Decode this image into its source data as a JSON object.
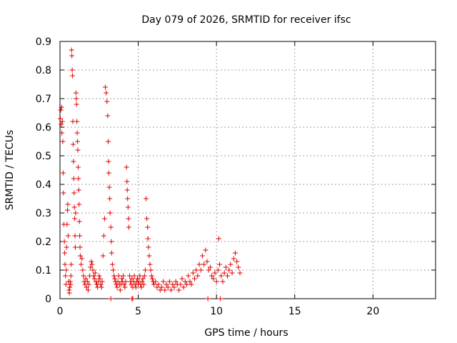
{
  "chart_data": {
    "type": "scatter",
    "title": "Day 079 of 2026, SRMTID for receiver ifsc",
    "xlabel": "GPS time / hours",
    "ylabel": "SRMTID / TECUs",
    "xlim": [
      0,
      24
    ],
    "ylim": [
      0,
      0.9
    ],
    "xticks": [
      0,
      5,
      10,
      15,
      20
    ],
    "yticks": [
      0,
      0.1,
      0.2,
      0.3,
      0.4,
      0.5,
      0.6,
      0.7,
      0.8,
      0.9
    ],
    "grid": true,
    "marker": "+",
    "color": "#e00000",
    "series": [
      {
        "name": "SRMTID",
        "points": [
          [
            0.02,
            0.63
          ],
          [
            0.05,
            0.66
          ],
          [
            0.08,
            0.61
          ],
          [
            0.1,
            0.67
          ],
          [
            0.12,
            0.58
          ],
          [
            0.15,
            0.62
          ],
          [
            0.18,
            0.55
          ],
          [
            0.2,
            0.44
          ],
          [
            0.22,
            0.37
          ],
          [
            0.25,
            0.26
          ],
          [
            0.28,
            0.2
          ],
          [
            0.3,
            0.16
          ],
          [
            0.32,
            0.12
          ],
          [
            0.35,
            0.08
          ],
          [
            0.38,
            0.05
          ],
          [
            0.4,
            0.1
          ],
          [
            0.42,
            0.18
          ],
          [
            0.45,
            0.26
          ],
          [
            0.48,
            0.31
          ],
          [
            0.5,
            0.33
          ],
          [
            0.52,
            0.22
          ],
          [
            0.55,
            0.06
          ],
          [
            0.58,
            0.03
          ],
          [
            0.6,
            0.02
          ],
          [
            0.62,
            0.04
          ],
          [
            0.65,
            0.06
          ],
          [
            0.68,
            0.05
          ],
          [
            0.7,
            0.08
          ],
          [
            0.72,
            0.12
          ],
          [
            0.74,
            0.87
          ],
          [
            0.76,
            0.85
          ],
          [
            0.78,
            0.8
          ],
          [
            0.8,
            0.78
          ],
          [
            0.82,
            0.62
          ],
          [
            0.84,
            0.54
          ],
          [
            0.86,
            0.48
          ],
          [
            0.88,
            0.42
          ],
          [
            0.9,
            0.37
          ],
          [
            0.92,
            0.32
          ],
          [
            0.94,
            0.28
          ],
          [
            0.96,
            0.22
          ],
          [
            0.98,
            0.18
          ],
          [
            1.0,
            0.3
          ],
          [
            1.02,
            0.72
          ],
          [
            1.04,
            0.7
          ],
          [
            1.06,
            0.68
          ],
          [
            1.08,
            0.62
          ],
          [
            1.1,
            0.58
          ],
          [
            1.12,
            0.55
          ],
          [
            1.14,
            0.52
          ],
          [
            1.16,
            0.46
          ],
          [
            1.18,
            0.42
          ],
          [
            1.2,
            0.38
          ],
          [
            1.22,
            0.33
          ],
          [
            1.24,
            0.27
          ],
          [
            1.26,
            0.22
          ],
          [
            1.28,
            0.18
          ],
          [
            1.3,
            0.15
          ],
          [
            1.35,
            0.12
          ],
          [
            1.4,
            0.14
          ],
          [
            1.45,
            0.1
          ],
          [
            1.5,
            0.08
          ],
          [
            1.55,
            0.06
          ],
          [
            1.6,
            0.05
          ],
          [
            1.65,
            0.07
          ],
          [
            1.7,
            0.04
          ],
          [
            1.75,
            0.06
          ],
          [
            1.8,
            0.03
          ],
          [
            1.85,
            0.05
          ],
          [
            1.9,
            0.08
          ],
          [
            1.95,
            0.11
          ],
          [
            2.0,
            0.13
          ],
          [
            2.05,
            0.12
          ],
          [
            2.1,
            0.1
          ],
          [
            2.15,
            0.08
          ],
          [
            2.2,
            0.07
          ],
          [
            2.25,
            0.09
          ],
          [
            2.3,
            0.06
          ],
          [
            2.35,
            0.05
          ],
          [
            2.4,
            0.04
          ],
          [
            2.45,
            0.06
          ],
          [
            2.5,
            0.08
          ],
          [
            2.55,
            0.07
          ],
          [
            2.6,
            0.05
          ],
          [
            2.65,
            0.04
          ],
          [
            2.7,
            0.06
          ],
          [
            2.75,
            0.15
          ],
          [
            2.8,
            0.22
          ],
          [
            2.85,
            0.28
          ],
          [
            2.9,
            0.74
          ],
          [
            2.95,
            0.72
          ],
          [
            3.0,
            0.69
          ],
          [
            3.05,
            0.64
          ],
          [
            3.08,
            0.55
          ],
          [
            3.1,
            0.48
          ],
          [
            3.12,
            0.44
          ],
          [
            3.15,
            0.39
          ],
          [
            3.18,
            0.35
          ],
          [
            3.2,
            0.3
          ],
          [
            3.25,
            0.25
          ],
          [
            3.28,
            0.2
          ],
          [
            3.3,
            0.16
          ],
          [
            3.35,
            0.12
          ],
          [
            3.4,
            0.1
          ],
          [
            3.45,
            0.08
          ],
          [
            3.5,
            0.07
          ],
          [
            3.55,
            0.06
          ],
          [
            3.6,
            0.05
          ],
          [
            3.65,
            0.04
          ],
          [
            3.7,
            0.06
          ],
          [
            3.75,
            0.08
          ],
          [
            3.8,
            0.05
          ],
          [
            3.85,
            0.03
          ],
          [
            3.9,
            0.05
          ],
          [
            3.95,
            0.07
          ],
          [
            4.0,
            0.06
          ],
          [
            4.05,
            0.08
          ],
          [
            4.1,
            0.05
          ],
          [
            4.15,
            0.04
          ],
          [
            4.2,
            0.06
          ],
          [
            4.25,
            0.46
          ],
          [
            4.28,
            0.41
          ],
          [
            4.3,
            0.38
          ],
          [
            4.32,
            0.35
          ],
          [
            4.35,
            0.32
          ],
          [
            4.38,
            0.28
          ],
          [
            4.4,
            0.25
          ],
          [
            4.45,
            0.08
          ],
          [
            4.5,
            0.06
          ],
          [
            4.55,
            0.05
          ],
          [
            4.6,
            0.07
          ],
          [
            4.65,
            0.04
          ],
          [
            4.7,
            0.06
          ],
          [
            4.75,
            0.08
          ],
          [
            4.8,
            0.05
          ],
          [
            4.85,
            0.04
          ],
          [
            4.9,
            0.06
          ],
          [
            4.95,
            0.07
          ],
          [
            5.0,
            0.05
          ],
          [
            5.05,
            0.06
          ],
          [
            5.1,
            0.08
          ],
          [
            5.15,
            0.05
          ],
          [
            5.2,
            0.04
          ],
          [
            5.25,
            0.06
          ],
          [
            5.3,
            0.07
          ],
          [
            5.35,
            0.05
          ],
          [
            5.4,
            0.08
          ],
          [
            5.45,
            0.1
          ],
          [
            5.5,
            0.35
          ],
          [
            5.55,
            0.28
          ],
          [
            5.6,
            0.25
          ],
          [
            5.62,
            0.21
          ],
          [
            5.65,
            0.18
          ],
          [
            5.7,
            0.15
          ],
          [
            5.75,
            0.12
          ],
          [
            5.8,
            0.1
          ],
          [
            5.85,
            0.08
          ],
          [
            5.9,
            0.07
          ],
          [
            5.95,
            0.06
          ],
          [
            6.0,
            0.05
          ],
          [
            6.1,
            0.06
          ],
          [
            6.2,
            0.04
          ],
          [
            6.3,
            0.05
          ],
          [
            6.4,
            0.03
          ],
          [
            6.5,
            0.04
          ],
          [
            6.6,
            0.06
          ],
          [
            6.7,
            0.03
          ],
          [
            6.8,
            0.05
          ],
          [
            6.9,
            0.04
          ],
          [
            7.0,
            0.06
          ],
          [
            7.1,
            0.03
          ],
          [
            7.2,
            0.05
          ],
          [
            7.3,
            0.04
          ],
          [
            7.4,
            0.06
          ],
          [
            7.5,
            0.05
          ],
          [
            7.6,
            0.03
          ],
          [
            7.7,
            0.05
          ],
          [
            7.8,
            0.07
          ],
          [
            7.9,
            0.04
          ],
          [
            8.0,
            0.06
          ],
          [
            8.1,
            0.05
          ],
          [
            8.2,
            0.08
          ],
          [
            8.3,
            0.06
          ],
          [
            8.4,
            0.05
          ],
          [
            8.5,
            0.09
          ],
          [
            8.6,
            0.07
          ],
          [
            8.7,
            0.1
          ],
          [
            8.8,
            0.08
          ],
          [
            8.9,
            0.12
          ],
          [
            9.0,
            0.1
          ],
          [
            9.1,
            0.15
          ],
          [
            9.2,
            0.12
          ],
          [
            9.3,
            0.17
          ],
          [
            9.4,
            0.13
          ],
          [
            9.5,
            0.1
          ],
          [
            9.6,
            0.11
          ],
          [
            9.7,
            0.08
          ],
          [
            9.8,
            0.07
          ],
          [
            9.9,
            0.09
          ],
          [
            10.0,
            0.06
          ],
          [
            10.1,
            0.1
          ],
          [
            10.15,
            0.21
          ],
          [
            10.2,
            0.12
          ],
          [
            10.3,
            0.08
          ],
          [
            10.4,
            0.06
          ],
          [
            10.5,
            0.09
          ],
          [
            10.6,
            0.11
          ],
          [
            10.7,
            0.08
          ],
          [
            10.8,
            0.1
          ],
          [
            10.9,
            0.12
          ],
          [
            11.0,
            0.09
          ],
          [
            11.1,
            0.14
          ],
          [
            11.2,
            0.16
          ],
          [
            11.3,
            0.13
          ],
          [
            11.4,
            0.11
          ],
          [
            11.5,
            0.09
          ],
          [
            3.25,
            0.0
          ],
          [
            4.6,
            0.0
          ],
          [
            4.65,
            0.0
          ],
          [
            9.45,
            0.0
          ],
          [
            10.25,
            0.0
          ]
        ]
      }
    ]
  }
}
